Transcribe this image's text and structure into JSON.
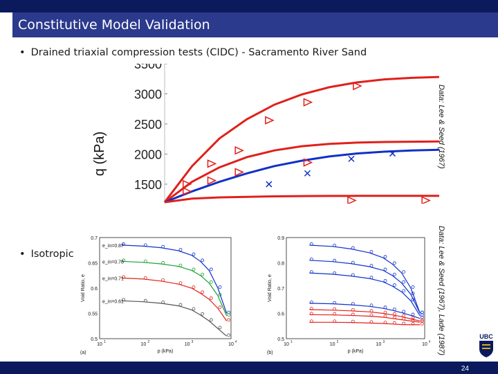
{
  "slide": {
    "title": "Constitutive Model Validation",
    "bullet1": "Drained triaxial compression tests (CIDC) - Sacramento River Sand",
    "bullet2": "Isotropic",
    "bullet_marker": "•",
    "credit_top": "Data: Lee & Seed (1967)",
    "credit_bottom": "Data: Lee & Seed (1967), Lade (1987)",
    "page_number": "24",
    "logo_text": "UBC"
  },
  "colors": {
    "top_band": "#0a1a5c",
    "title_band": "#2b3a8c",
    "red": "#e0201a",
    "blue": "#1030c8",
    "green": "#18a030",
    "gray": "#505050"
  },
  "chart_data": [
    {
      "type": "scatter",
      "title": "",
      "ylabel": "q (kPa)",
      "yticks": [
        "3500",
        "3000",
        "2500",
        "2000",
        "1500"
      ],
      "ylim": [
        1200,
        3500
      ],
      "xlim": [
        0,
        1
      ],
      "series": [
        {
          "name": "model-red-high",
          "color": "#e0201a",
          "kind": "line",
          "x": [
            0.0,
            0.1,
            0.2,
            0.3,
            0.4,
            0.5,
            0.6,
            0.7,
            0.8,
            0.9,
            1.0
          ],
          "y": [
            1200,
            1800,
            2260,
            2580,
            2820,
            2990,
            3110,
            3190,
            3240,
            3265,
            3280
          ]
        },
        {
          "name": "model-red-mid",
          "color": "#e0201a",
          "kind": "line",
          "x": [
            0.0,
            0.1,
            0.2,
            0.3,
            0.4,
            0.5,
            0.6,
            0.7,
            0.8,
            0.9,
            1.0
          ],
          "y": [
            1200,
            1540,
            1780,
            1950,
            2060,
            2130,
            2170,
            2190,
            2200,
            2205,
            2208
          ]
        },
        {
          "name": "model-blue",
          "color": "#1030c8",
          "kind": "line",
          "x": [
            0.0,
            0.1,
            0.2,
            0.3,
            0.4,
            0.5,
            0.6,
            0.7,
            0.8,
            0.9,
            1.0
          ],
          "y": [
            1200,
            1380,
            1540,
            1680,
            1800,
            1890,
            1960,
            2010,
            2040,
            2060,
            2070
          ]
        },
        {
          "name": "model-red-low",
          "color": "#e0201a",
          "kind": "line",
          "x": [
            0.0,
            0.1,
            0.2,
            0.3,
            0.4,
            0.5,
            0.6,
            0.7,
            0.8,
            0.9,
            1.0
          ],
          "y": [
            1200,
            1260,
            1280,
            1290,
            1298,
            1302,
            1305,
            1306,
            1307,
            1307,
            1307
          ]
        },
        {
          "name": "data-triangles",
          "color": "#e0201a",
          "kind": "triangle",
          "x": [
            0.08,
            0.17,
            0.27,
            0.38,
            0.52,
            0.7,
            0.08,
            0.17,
            0.27,
            0.52,
            0.68,
            0.95
          ],
          "y": [
            1500,
            1840,
            2060,
            2560,
            2860,
            3130,
            1380,
            1560,
            1700,
            1860,
            1230,
            1230
          ]
        },
        {
          "name": "data-x",
          "color": "#1030c8",
          "kind": "x",
          "x": [
            0.38,
            0.52,
            0.68,
            0.83
          ],
          "y": [
            1500,
            1680,
            1920,
            2010
          ]
        }
      ]
    },
    {
      "type": "line",
      "xlabel": "p (kPa)",
      "ylabel": "Void Ratio, e",
      "panel": "(a)",
      "log_x": true,
      "xlim": [
        1,
        4
      ],
      "ylim": [
        0.5,
        0.7
      ],
      "xticks": [
        "10",
        "10",
        "10",
        "10"
      ],
      "xtick_exps": [
        "1",
        "2",
        "3",
        "4"
      ],
      "yticks": [
        "0.7",
        "0.65",
        "0.6",
        "0.55",
        "0.5"
      ],
      "labels": [
        "e_in=0.87",
        "e_in=0.78",
        "e_in=0.71",
        "e_in=0.61"
      ],
      "series": [
        {
          "name": "e_in=0.87",
          "color": "#1030c8",
          "x": [
            1.5,
            2.0,
            2.4,
            2.8,
            3.1,
            3.3,
            3.5,
            3.7,
            3.9
          ],
          "y": [
            0.685,
            0.683,
            0.68,
            0.674,
            0.665,
            0.653,
            0.635,
            0.6,
            0.55
          ]
        },
        {
          "name": "e_in=0.78",
          "color": "#18a030",
          "x": [
            1.5,
            2.0,
            2.4,
            2.8,
            3.1,
            3.3,
            3.5,
            3.7,
            3.9
          ],
          "y": [
            0.653,
            0.651,
            0.648,
            0.643,
            0.635,
            0.625,
            0.61,
            0.585,
            0.545
          ]
        },
        {
          "name": "e_in=0.71",
          "color": "#e0201a",
          "x": [
            1.5,
            2.0,
            2.4,
            2.8,
            3.1,
            3.3,
            3.5,
            3.7,
            3.9
          ],
          "y": [
            0.62,
            0.618,
            0.614,
            0.608,
            0.6,
            0.59,
            0.578,
            0.56,
            0.535
          ]
        },
        {
          "name": "e_in=0.61",
          "color": "#505050",
          "x": [
            1.5,
            2.0,
            2.4,
            2.8,
            3.1,
            3.3,
            3.5,
            3.7,
            3.9
          ],
          "y": [
            0.575,
            0.573,
            0.57,
            0.565,
            0.557,
            0.547,
            0.535,
            0.52,
            0.505
          ]
        }
      ]
    },
    {
      "type": "line",
      "xlabel": "p (kPa)",
      "ylabel": "Void Ratio, e",
      "panel": "(b)",
      "log_x": true,
      "xlim": [
        1,
        4
      ],
      "ylim": [
        0.5,
        0.9
      ],
      "xticks": [
        "10",
        "10",
        "10",
        "10"
      ],
      "xtick_exps": [
        "1",
        "2",
        "3",
        "4"
      ],
      "yticks": [
        "0.9",
        "0.8",
        "0.7",
        "0.6",
        "0.5"
      ],
      "series": [
        {
          "name": "blue-1",
          "color": "#1030c8",
          "x": [
            1.5,
            2.0,
            2.4,
            2.8,
            3.1,
            3.3,
            3.5,
            3.7,
            3.9
          ],
          "y": [
            0.87,
            0.865,
            0.855,
            0.84,
            0.82,
            0.795,
            0.76,
            0.7,
            0.6
          ]
        },
        {
          "name": "blue-2",
          "color": "#1030c8",
          "x": [
            1.5,
            2.0,
            2.4,
            2.8,
            3.1,
            3.3,
            3.5,
            3.7,
            3.9
          ],
          "y": [
            0.81,
            0.805,
            0.797,
            0.785,
            0.77,
            0.75,
            0.72,
            0.675,
            0.6
          ]
        },
        {
          "name": "blue-3",
          "color": "#1030c8",
          "x": [
            1.5,
            2.0,
            2.4,
            2.8,
            3.1,
            3.3,
            3.5,
            3.7,
            3.9
          ],
          "y": [
            0.76,
            0.755,
            0.748,
            0.738,
            0.725,
            0.708,
            0.685,
            0.65,
            0.59
          ]
        },
        {
          "name": "blue-4",
          "color": "#1030c8",
          "x": [
            1.5,
            2.0,
            2.4,
            2.8,
            3.1,
            3.3,
            3.5,
            3.7,
            3.9
          ],
          "y": [
            0.64,
            0.638,
            0.634,
            0.628,
            0.62,
            0.612,
            0.603,
            0.592,
            0.58
          ]
        },
        {
          "name": "red-1",
          "color": "#e0201a",
          "x": [
            1.5,
            2.0,
            2.4,
            2.8,
            3.1,
            3.3,
            3.5,
            3.7,
            3.9
          ],
          "y": [
            0.615,
            0.613,
            0.61,
            0.606,
            0.6,
            0.594,
            0.587,
            0.578,
            0.57
          ]
        },
        {
          "name": "red-2",
          "color": "#e0201a",
          "x": [
            1.5,
            2.0,
            2.4,
            2.8,
            3.1,
            3.3,
            3.5,
            3.7,
            3.9
          ],
          "y": [
            0.595,
            0.594,
            0.592,
            0.589,
            0.585,
            0.58,
            0.575,
            0.57,
            0.565
          ]
        },
        {
          "name": "red-3",
          "color": "#e0201a",
          "x": [
            1.5,
            2.0,
            2.4,
            2.8,
            3.1,
            3.3,
            3.5,
            3.7,
            3.9
          ],
          "y": [
            0.565,
            0.565,
            0.564,
            0.562,
            0.56,
            0.558,
            0.556,
            0.555,
            0.555
          ]
        }
      ]
    }
  ]
}
